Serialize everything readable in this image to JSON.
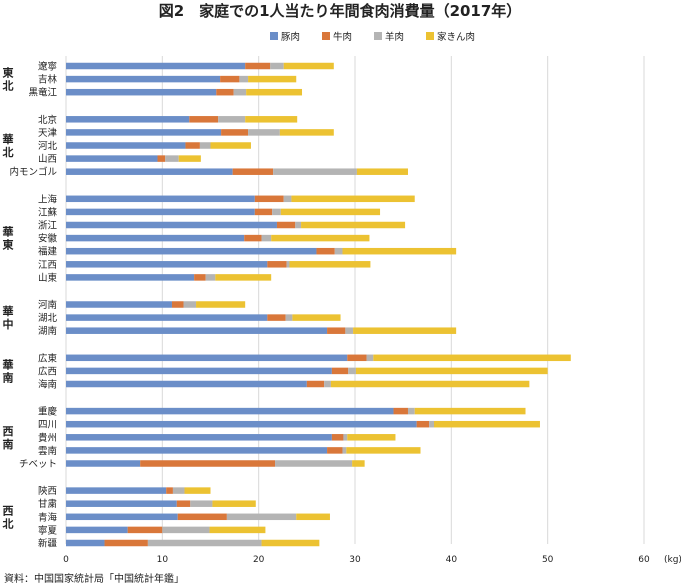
{
  "chart_data": {
    "type": "bar",
    "orientation": "horizontal",
    "stacked": true,
    "title": "図2　家庭での1人当たり年間食肉消費量（2017年）",
    "xlabel": "",
    "ylabel": "",
    "unit": "(kg)",
    "xlim": [
      0,
      60
    ],
    "xticks": [
      0,
      10,
      20,
      30,
      40,
      50,
      60
    ],
    "grid": true,
    "legend_position": "top",
    "source": "資料：中国国家統計局「中国統計年鑑」",
    "series": [
      {
        "name": "豚肉",
        "color": "#6b8ec8"
      },
      {
        "name": "牛肉",
        "color": "#d9773a"
      },
      {
        "name": "羊肉",
        "color": "#b4b4b4"
      },
      {
        "name": "家きん肉",
        "color": "#ecc232"
      }
    ],
    "groups": [
      {
        "name": "東北",
        "rows": [
          {
            "label": "遼寧",
            "values": [
              18.6,
              2.6,
              1.4,
              5.2
            ]
          },
          {
            "label": "吉林",
            "values": [
              16.0,
              2.0,
              0.9,
              5.0
            ]
          },
          {
            "label": "黒竜江",
            "values": [
              15.6,
              1.8,
              1.3,
              5.8
            ]
          }
        ]
      },
      {
        "name": "華北",
        "rows": [
          {
            "label": "北京",
            "values": [
              12.8,
              3.0,
              2.8,
              5.4
            ]
          },
          {
            "label": "天津",
            "values": [
              16.1,
              2.8,
              3.3,
              5.6
            ]
          },
          {
            "label": "河北",
            "values": [
              12.4,
              1.5,
              1.1,
              4.2
            ]
          },
          {
            "label": "山西",
            "values": [
              9.5,
              0.8,
              1.4,
              2.3
            ]
          },
          {
            "label": "内モンゴル",
            "values": [
              17.3,
              4.2,
              8.7,
              5.3
            ]
          }
        ]
      },
      {
        "name": "華東",
        "rows": [
          {
            "label": "上海",
            "values": [
              19.6,
              3.0,
              0.8,
              12.8
            ]
          },
          {
            "label": "江蘇",
            "values": [
              19.6,
              1.8,
              0.9,
              10.3
            ]
          },
          {
            "label": "浙江",
            "values": [
              21.9,
              1.9,
              0.6,
              10.8
            ]
          },
          {
            "label": "安徽",
            "values": [
              18.5,
              1.8,
              1.0,
              10.2
            ]
          },
          {
            "label": "福建",
            "values": [
              26.0,
              1.9,
              0.8,
              11.8
            ]
          },
          {
            "label": "江西",
            "values": [
              20.9,
              2.0,
              0.3,
              8.4
            ]
          },
          {
            "label": "山東",
            "values": [
              13.3,
              1.2,
              1.0,
              5.8
            ]
          }
        ]
      },
      {
        "name": "華中",
        "rows": [
          {
            "label": "河南",
            "values": [
              11.0,
              1.2,
              1.3,
              5.1
            ]
          },
          {
            "label": "湖北",
            "values": [
              20.9,
              1.9,
              0.7,
              5.0
            ]
          },
          {
            "label": "湖南",
            "values": [
              27.1,
              1.9,
              0.8,
              10.7
            ]
          }
        ]
      },
      {
        "name": "華南",
        "rows": [
          {
            "label": "広東",
            "values": [
              29.2,
              2.0,
              0.7,
              20.5
            ]
          },
          {
            "label": "広西",
            "values": [
              27.6,
              1.7,
              0.8,
              19.9
            ]
          },
          {
            "label": "海南",
            "values": [
              25.0,
              1.8,
              0.7,
              20.6
            ]
          }
        ]
      },
      {
        "name": "西南",
        "rows": [
          {
            "label": "重慶",
            "values": [
              34.0,
              1.5,
              0.7,
              11.5
            ]
          },
          {
            "label": "四川",
            "values": [
              36.4,
              1.3,
              0.5,
              11.0
            ]
          },
          {
            "label": "貴州",
            "values": [
              27.6,
              1.2,
              0.4,
              5.0
            ]
          },
          {
            "label": "雲南",
            "values": [
              27.1,
              1.6,
              0.4,
              7.7
            ]
          },
          {
            "label": "チベット",
            "values": [
              7.7,
              14.0,
              8.0,
              1.3
            ]
          }
        ]
      },
      {
        "name": "西北",
        "rows": [
          {
            "label": "陝西",
            "values": [
              10.4,
              0.7,
              1.2,
              2.7
            ]
          },
          {
            "label": "甘粛",
            "values": [
              11.5,
              1.4,
              2.3,
              4.5
            ]
          },
          {
            "label": "青海",
            "values": [
              11.6,
              5.1,
              7.2,
              3.5
            ]
          },
          {
            "label": "寧夏",
            "values": [
              6.4,
              3.6,
              4.9,
              5.8
            ]
          },
          {
            "label": "新疆",
            "values": [
              4.0,
              4.5,
              11.8,
              6.0
            ]
          }
        ]
      }
    ]
  }
}
